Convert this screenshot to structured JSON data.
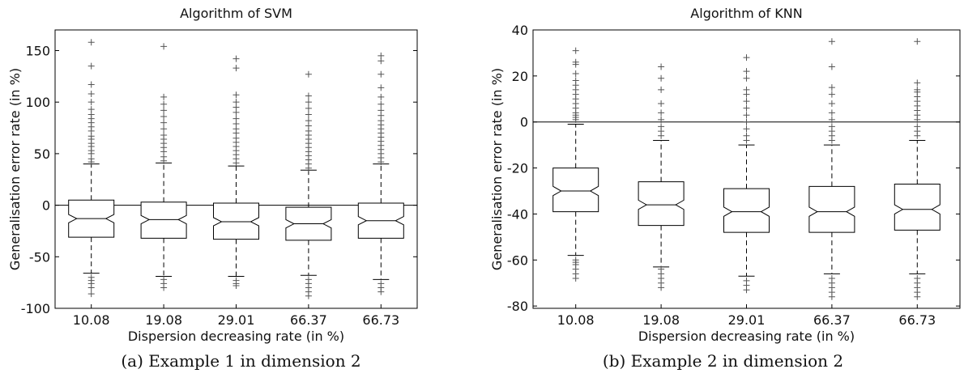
{
  "figures": [
    {
      "caption": "(a) Example 1 in dimension 2",
      "chart_data": {
        "type": "boxplot",
        "notched": true,
        "title": "Algorithm of SVM",
        "xlabel": "Dispersion decreasing rate (in %)",
        "ylabel": "Generalisation error rate (in %)",
        "ylim": [
          -100,
          170
        ],
        "yticks": [
          -100,
          -50,
          0,
          50,
          100,
          150
        ],
        "ytick_labels": [
          "-100",
          "-50",
          "0",
          "50",
          "100",
          "150"
        ],
        "reference_line": 0,
        "categories": [
          "10.08",
          "19.08",
          "29.01",
          "66.37",
          "66.73"
        ],
        "boxes": [
          {
            "whisker_low": -66,
            "q1": -31,
            "median": -13,
            "q3": 5,
            "whisker_high": 40,
            "notch": [
              -17,
              -9
            ],
            "outliers": [
              -70,
              -73,
              -76,
              -80,
              -86,
              42,
              45,
              50,
              53,
              57,
              60,
              64,
              67,
              72,
              76,
              80,
              84,
              88,
              93,
              100,
              108,
              117,
              135,
              158
            ]
          },
          {
            "whisker_low": -69,
            "q1": -32,
            "median": -14,
            "q3": 3,
            "whisker_high": 41,
            "notch": [
              -18,
              -10
            ],
            "outliers": [
              -72,
              -76,
              -80,
              43,
              47,
              52,
              56,
              60,
              64,
              68,
              74,
              80,
              86,
              92,
              98,
              105,
              154
            ]
          },
          {
            "whisker_low": -69,
            "q1": -33,
            "median": -16,
            "q3": 2,
            "whisker_high": 38,
            "notch": [
              -20,
              -12
            ],
            "outliers": [
              -73,
              -76,
              -78,
              41,
              45,
              49,
              53,
              57,
              61,
              65,
              70,
              74,
              79,
              84,
              90,
              95,
              100,
              107,
              133,
              142
            ]
          },
          {
            "whisker_low": -68,
            "q1": -34,
            "median": -18,
            "q3": -2,
            "whisker_high": 34,
            "notch": [
              -22,
              -14
            ],
            "outliers": [
              -72,
              -76,
              -80,
              -84,
              -88,
              36,
              40,
              44,
              48,
              52,
              56,
              60,
              64,
              68,
              72,
              77,
              82,
              88,
              94,
              100,
              106,
              127
            ]
          },
          {
            "whisker_low": -72,
            "q1": -32,
            "median": -15,
            "q3": 2,
            "whisker_high": 40,
            "notch": [
              -19,
              -11
            ],
            "outliers": [
              -76,
              -80,
              -84,
              42,
              46,
              50,
              54,
              58,
              62,
              66,
              70,
              74,
              78,
              82,
              87,
              92,
              98,
              105,
              114,
              127,
              140,
              145
            ]
          }
        ]
      }
    },
    {
      "caption": "(b) Example 2 in dimension 2",
      "chart_data": {
        "type": "boxplot",
        "notched": true,
        "title": "Algorithm of KNN",
        "xlabel": "Dispersion decreasing rate (in %)",
        "ylabel": "Generalisation error rate (in %)",
        "ylim": [
          -81,
          40
        ],
        "yticks": [
          -80,
          -60,
          -40,
          -20,
          0,
          20,
          40
        ],
        "ytick_labels": [
          "-80",
          "-60",
          "-40",
          "-20",
          "0",
          "20",
          "40"
        ],
        "reference_line": 0,
        "categories": [
          "10.08",
          "19.08",
          "29.01",
          "66.37",
          "66.73"
        ],
        "boxes": [
          {
            "whisker_low": -58,
            "q1": -39,
            "median": -30,
            "q3": -20,
            "whisker_high": -1,
            "notch": [
              -32,
              -28
            ],
            "outliers": [
              -60,
              -61,
              -62,
              -64,
              -66,
              -68,
              1,
              2,
              3,
              4,
              6,
              8,
              10,
              12,
              14,
              16,
              18,
              21,
              25,
              26,
              31
            ]
          },
          {
            "whisker_low": -63,
            "q1": -45,
            "median": -36,
            "q3": -26,
            "whisker_high": -8,
            "notch": [
              -38,
              -34
            ],
            "outliers": [
              -64,
              -66,
              -68,
              -70,
              -72,
              -6,
              -4,
              -2,
              1,
              4,
              8,
              14,
              19,
              24
            ]
          },
          {
            "whisker_low": -67,
            "q1": -48,
            "median": -39,
            "q3": -29,
            "whisker_high": -10,
            "notch": [
              -41,
              -37
            ],
            "outliers": [
              -69,
              -71,
              -73,
              -8,
              -6,
              -3,
              0,
              3,
              6,
              9,
              12,
              14,
              19,
              22,
              28
            ]
          },
          {
            "whisker_low": -66,
            "q1": -48,
            "median": -39,
            "q3": -28,
            "whisker_high": -10,
            "notch": [
              -41,
              -37
            ],
            "outliers": [
              -68,
              -70,
              -72,
              -74,
              -76,
              -8,
              -6,
              -4,
              -2,
              1,
              4,
              8,
              12,
              15,
              24,
              35
            ]
          },
          {
            "whisker_low": -66,
            "q1": -47,
            "median": -38,
            "q3": -27,
            "whisker_high": -8,
            "notch": [
              -40,
              -36
            ],
            "outliers": [
              -68,
              -70,
              -72,
              -74,
              -76,
              -6,
              -4,
              -2,
              1,
              3,
              5,
              7,
              9,
              11,
              13,
              14,
              17,
              35
            ]
          }
        ]
      }
    }
  ]
}
